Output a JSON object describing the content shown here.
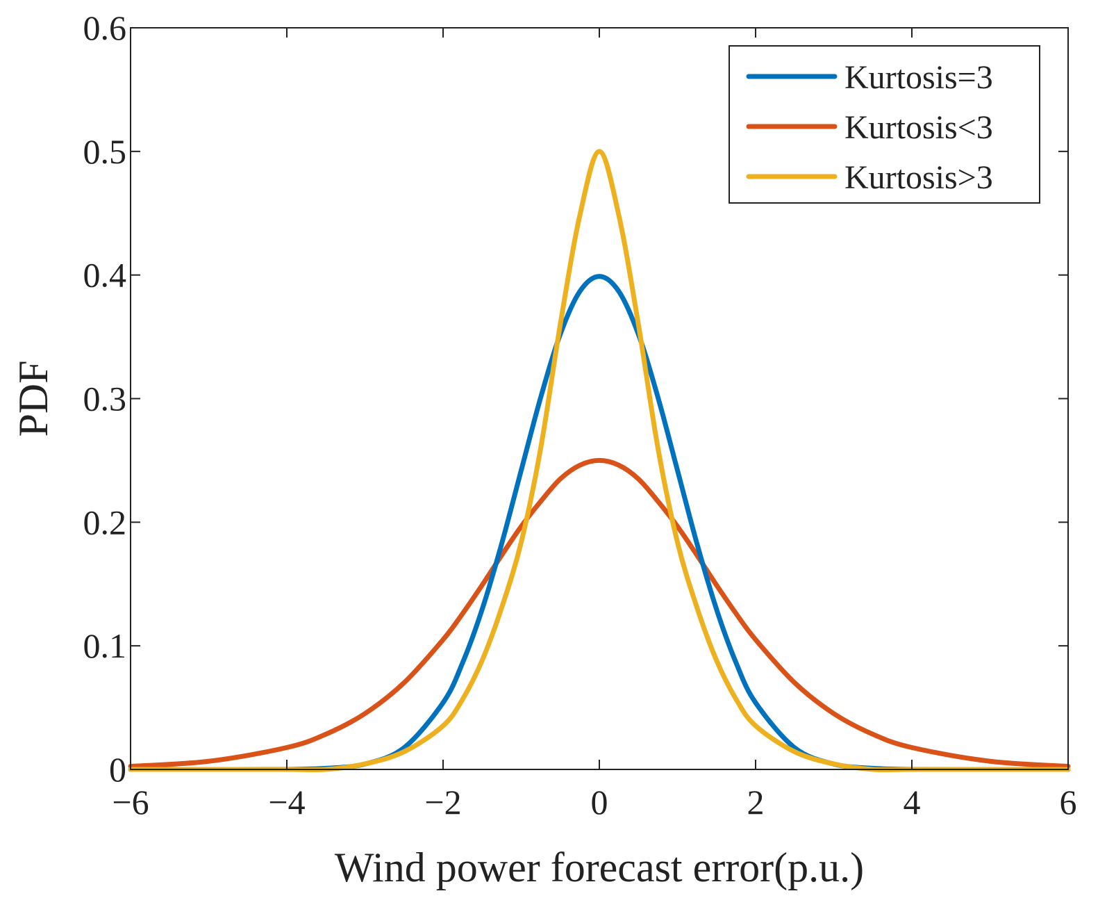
{
  "chart_data": {
    "type": "line",
    "title": "",
    "xlabel": "Wind power forecast error(p.u.)",
    "ylabel": "PDF",
    "xlim": [
      -6,
      6
    ],
    "ylim": [
      0,
      0.6
    ],
    "grid": false,
    "legend_position": "top-right",
    "xticks": [
      {
        "value": -6,
        "label": "−6"
      },
      {
        "value": -4,
        "label": "−4"
      },
      {
        "value": -2,
        "label": "−2"
      },
      {
        "value": 0,
        "label": "0"
      },
      {
        "value": 2,
        "label": "2"
      },
      {
        "value": 4,
        "label": "4"
      },
      {
        "value": 6,
        "label": "6"
      }
    ],
    "yticks": [
      {
        "value": 0,
        "label": "0"
      },
      {
        "value": 0.1,
        "label": "0.1"
      },
      {
        "value": 0.2,
        "label": "0.2"
      },
      {
        "value": 0.3,
        "label": "0.3"
      },
      {
        "value": 0.4,
        "label": "0.4"
      },
      {
        "value": 0.5,
        "label": "0.5"
      },
      {
        "value": 0.6,
        "label": "0.6"
      }
    ],
    "x": [
      -6,
      -5,
      -4,
      -3.5,
      -3,
      -2.5,
      -2,
      -1.75,
      -1.5,
      -1.25,
      -1,
      -0.75,
      -0.5,
      -0.25,
      0,
      0.25,
      0.5,
      0.75,
      1,
      1.25,
      1.5,
      1.75,
      2,
      2.5,
      3,
      3.5,
      4,
      5,
      6
    ],
    "series": [
      {
        "name": "Kurtosis=3",
        "color": "#0072BD",
        "values": [
          0.0,
          0.0,
          0.0001,
          0.0009,
          0.0044,
          0.0175,
          0.054,
          0.0863,
          0.1295,
          0.1826,
          0.242,
          0.3011,
          0.3521,
          0.3867,
          0.3989,
          0.3867,
          0.3521,
          0.3011,
          0.242,
          0.1826,
          0.1295,
          0.0863,
          0.054,
          0.0175,
          0.0044,
          0.0009,
          0.0001,
          0.0,
          0.0
        ]
      },
      {
        "name": "Kurtosis<3",
        "color": "#D95319",
        "values": [
          0.0025,
          0.0066,
          0.0177,
          0.0285,
          0.0452,
          0.0701,
          0.105,
          0.1261,
          0.1491,
          0.1733,
          0.1966,
          0.2169,
          0.235,
          0.2461,
          0.25,
          0.2461,
          0.235,
          0.2169,
          0.1966,
          0.1733,
          0.1491,
          0.1261,
          0.105,
          0.0701,
          0.0452,
          0.0285,
          0.0177,
          0.0066,
          0.0025
        ]
      },
      {
        "name": "Kurtosis>3",
        "color": "#EDB120",
        "values": [
          0.0,
          0.0,
          0.0,
          0.0,
          0.0045,
          0.0143,
          0.0353,
          0.0568,
          0.0882,
          0.1309,
          0.1838,
          0.2601,
          0.36,
          0.4481,
          0.5,
          0.4481,
          0.36,
          0.2601,
          0.1838,
          0.1309,
          0.0882,
          0.0568,
          0.0353,
          0.0143,
          0.0045,
          0.0,
          0.0,
          0.0,
          0.0
        ]
      }
    ]
  }
}
